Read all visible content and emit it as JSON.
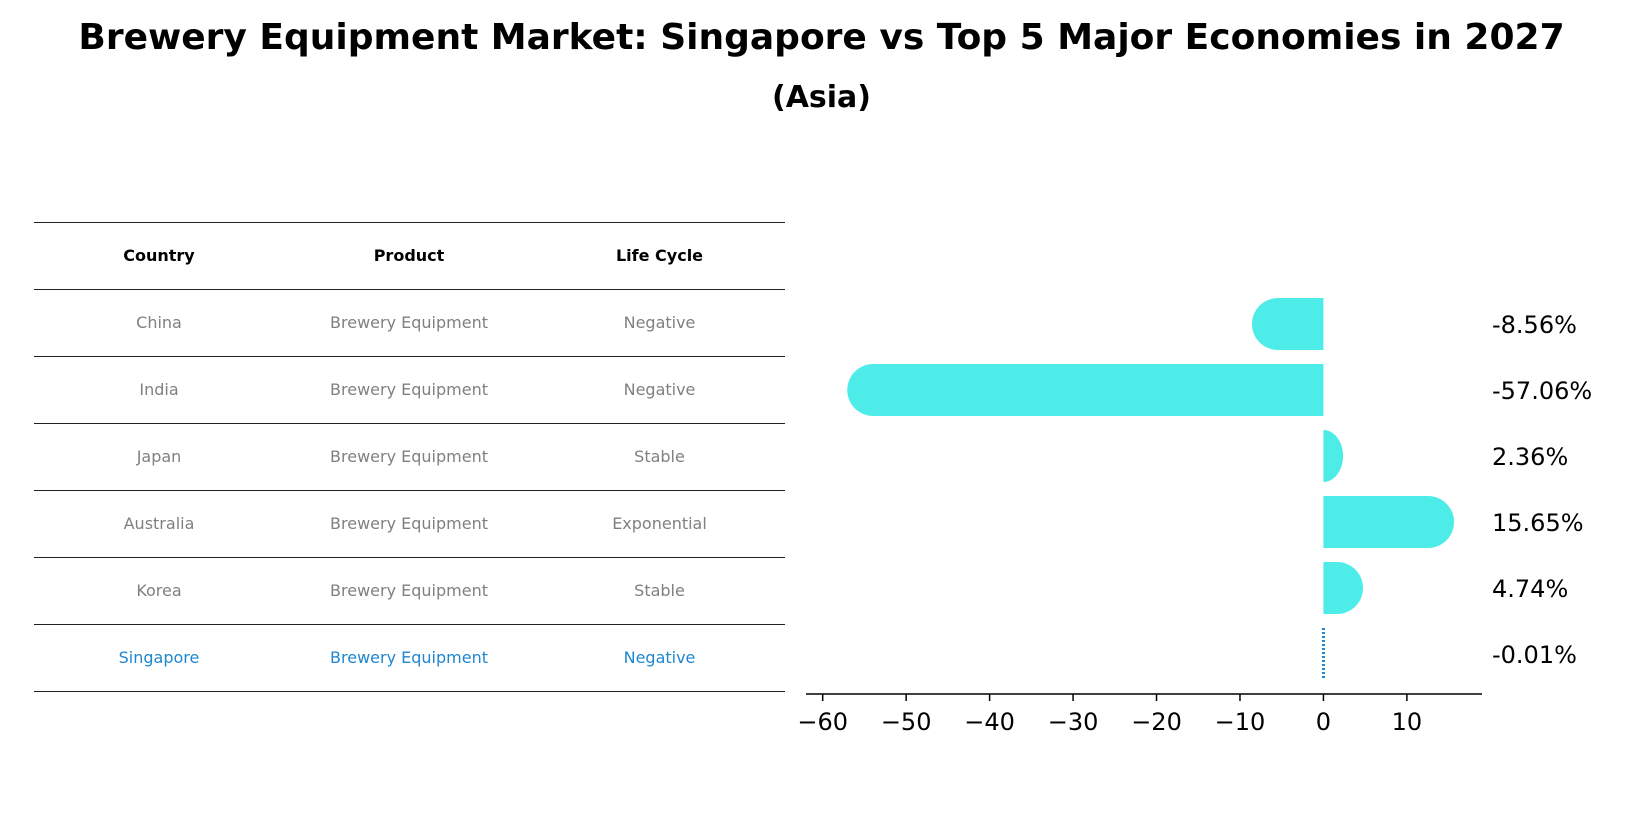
{
  "title": "Brewery Equipment Market: Singapore vs Top 5 Major Economies in 2027",
  "subtitle": "(Asia)",
  "table": {
    "headers": [
      "Country",
      "Product",
      "Life Cycle"
    ],
    "rows": [
      [
        "China",
        "Brewery Equipment",
        "Negative"
      ],
      [
        "India",
        "Brewery Equipment",
        "Negative"
      ],
      [
        "Japan",
        "Brewery Equipment",
        "Stable"
      ],
      [
        "Australia",
        "Brewery Equipment",
        "Exponential"
      ],
      [
        "Korea",
        "Brewery Equipment",
        "Stable"
      ],
      [
        "Singapore",
        "Brewery Equipment",
        "Negative"
      ]
    ],
    "highlight_row": 5
  },
  "chart_data": {
    "type": "bar",
    "orientation": "horizontal",
    "categories": [
      "China",
      "India",
      "Japan",
      "Australia",
      "Korea",
      "Singapore"
    ],
    "values": [
      -8.56,
      -57.06,
      2.36,
      15.65,
      4.74,
      -0.01
    ],
    "value_labels": [
      "-8.56%",
      "-57.06%",
      "2.36%",
      "15.65%",
      "4.74%",
      "-0.01%"
    ],
    "xticks": [
      -60,
      -50,
      -40,
      -30,
      -20,
      -10,
      0,
      10
    ],
    "xlim": [
      -62,
      19
    ],
    "bar_color": "#4dece9",
    "highlight_color": "#1f86cf"
  }
}
